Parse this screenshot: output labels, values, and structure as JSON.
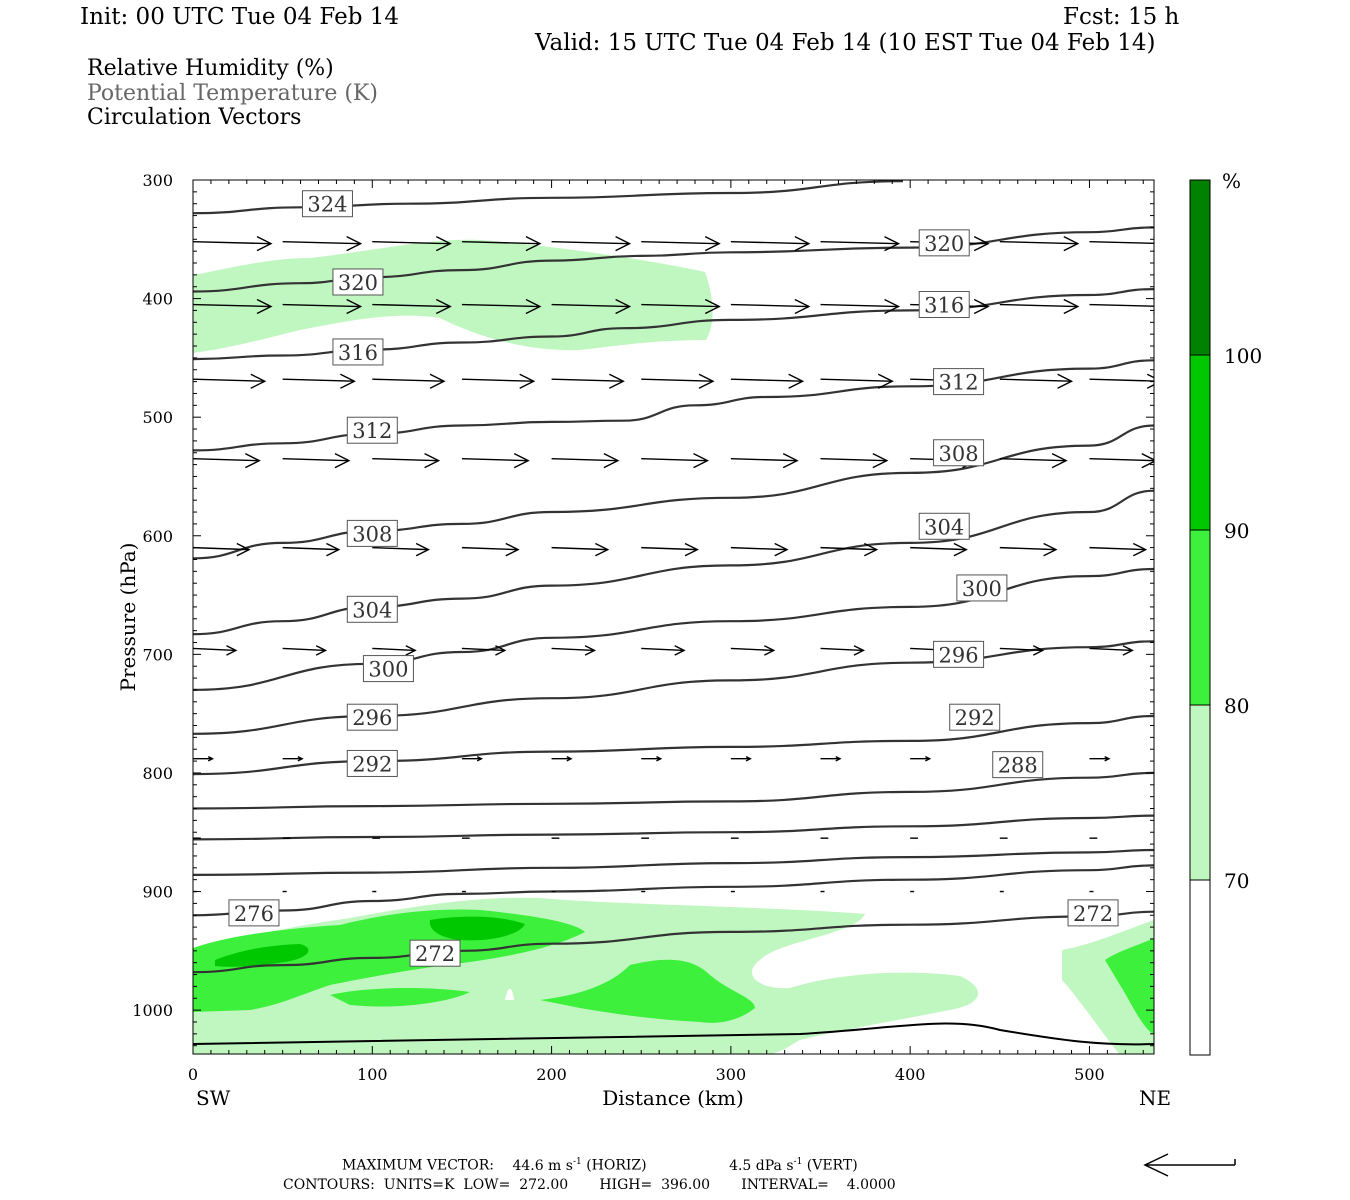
{
  "header": {
    "init": "Init: 00 UTC Tue 04 Feb 14",
    "fcst": "Fcst:   15 h",
    "valid": "Valid: 15 UTC Tue 04 Feb 14 (10 EST Tue 04 Feb 14)"
  },
  "fields": {
    "rh": "Relative Humidity (%)",
    "theta": "Potential Temperature (K)",
    "vectors": "Circulation Vectors"
  },
  "footer": {
    "max_vector_label": "MAXIMUM VECTOR:",
    "max_horiz_value": "44.6 m s",
    "horiz_exp": "-1",
    "horiz_suffix": " (HORIZ)",
    "max_vert_value": "4.5 dPa s",
    "vert_exp": "-1",
    "vert_suffix": " (VERT)",
    "contours": "CONTOURS:  UNITS=K  LOW=  272.00       HIGH=  396.00       INTERVAL=    4.0000"
  },
  "colors": {
    "rh70": "#c0f7c0",
    "rh80": "#3cf03c",
    "rh90": "#00c800",
    "rh100": "#008200",
    "contour": "#333333",
    "frame": "#000000"
  },
  "chart_data": {
    "type": "cross-section",
    "xlabel": "Distance (km)",
    "ylabel": "Pressure (hPa)",
    "xlim": [
      0,
      536
    ],
    "ylim": [
      1037,
      300
    ],
    "x_ticks": [
      0,
      100,
      200,
      300,
      400,
      500
    ],
    "y_ticks": [
      300,
      400,
      500,
      600,
      700,
      800,
      900,
      1000
    ],
    "left_end": "SW",
    "right_end": "NE",
    "colorbar": {
      "unit": "%",
      "levels": [
        70,
        80,
        90,
        100
      ]
    },
    "theta_contours": [
      {
        "value": 324,
        "pts": [
          [
            0,
            328
          ],
          [
            60,
            323
          ],
          [
            120,
            320
          ],
          [
            200,
            315
          ],
          [
            300,
            311
          ],
          [
            396,
            301
          ]
        ]
      },
      {
        "value": 320,
        "pts": [
          [
            0,
            394
          ],
          [
            60,
            387
          ],
          [
            100,
            382
          ],
          [
            150,
            376
          ],
          [
            200,
            368
          ],
          [
            250,
            364
          ],
          [
            300,
            361
          ],
          [
            400,
            357
          ],
          [
            500,
            344
          ],
          [
            536,
            340
          ]
        ]
      },
      {
        "value": 316,
        "pts": [
          [
            0,
            451
          ],
          [
            50,
            448
          ],
          [
            100,
            443
          ],
          [
            150,
            437
          ],
          [
            200,
            432
          ],
          [
            240,
            425
          ],
          [
            300,
            418
          ],
          [
            400,
            410
          ],
          [
            500,
            397
          ],
          [
            536,
            392
          ]
        ]
      },
      {
        "value": 312,
        "pts": [
          [
            0,
            528
          ],
          [
            50,
            522
          ],
          [
            100,
            514
          ],
          [
            150,
            507
          ],
          [
            200,
            504
          ],
          [
            240,
            503
          ],
          [
            280,
            490
          ],
          [
            320,
            483
          ],
          [
            400,
            474
          ],
          [
            500,
            459
          ],
          [
            536,
            452
          ]
        ]
      },
      {
        "value": 308,
        "pts": [
          [
            0,
            619
          ],
          [
            50,
            606
          ],
          [
            100,
            596
          ],
          [
            150,
            590
          ],
          [
            200,
            580
          ],
          [
            300,
            568
          ],
          [
            400,
            547
          ],
          [
            500,
            524
          ],
          [
            536,
            507
          ]
        ]
      },
      {
        "value": 304,
        "pts": [
          [
            0,
            683
          ],
          [
            50,
            672
          ],
          [
            100,
            660
          ],
          [
            150,
            653
          ],
          [
            200,
            642
          ],
          [
            300,
            625
          ],
          [
            400,
            606
          ],
          [
            500,
            580
          ],
          [
            536,
            562
          ]
        ]
      },
      {
        "value": 300,
        "pts": [
          [
            0,
            730
          ],
          [
            100,
            708
          ],
          [
            150,
            698
          ],
          [
            200,
            686
          ],
          [
            300,
            672
          ],
          [
            400,
            660
          ],
          [
            500,
            634
          ],
          [
            536,
            628
          ]
        ]
      },
      {
        "value": 296,
        "pts": [
          [
            0,
            767
          ],
          [
            100,
            752
          ],
          [
            200,
            737
          ],
          [
            300,
            722
          ],
          [
            400,
            707
          ],
          [
            500,
            694
          ],
          [
            536,
            689
          ]
        ]
      },
      {
        "value": 292,
        "pts": [
          [
            0,
            801
          ],
          [
            100,
            790
          ],
          [
            200,
            782
          ],
          [
            300,
            778
          ],
          [
            400,
            773
          ],
          [
            500,
            758
          ],
          [
            536,
            752
          ]
        ]
      },
      {
        "value": 288,
        "pts": [
          [
            0,
            830
          ],
          [
            100,
            828
          ],
          [
            200,
            826
          ],
          [
            300,
            824
          ],
          [
            400,
            816
          ],
          [
            500,
            804
          ],
          [
            536,
            800
          ]
        ]
      },
      {
        "value": 284,
        "pts": [
          [
            0,
            856
          ],
          [
            100,
            854
          ],
          [
            200,
            852
          ],
          [
            300,
            850
          ],
          [
            400,
            845
          ],
          [
            500,
            838
          ],
          [
            536,
            836
          ]
        ]
      },
      {
        "value": 280,
        "pts": [
          [
            0,
            886
          ],
          [
            100,
            884
          ],
          [
            200,
            880
          ],
          [
            300,
            876
          ],
          [
            400,
            871
          ],
          [
            500,
            867
          ],
          [
            536,
            865
          ]
        ]
      },
      {
        "value": 276,
        "pts": [
          [
            0,
            920
          ],
          [
            50,
            916
          ],
          [
            100,
            908
          ],
          [
            150,
            902
          ],
          [
            200,
            900
          ],
          [
            300,
            896
          ],
          [
            400,
            890
          ],
          [
            500,
            882
          ],
          [
            536,
            878
          ]
        ]
      },
      {
        "value": 272,
        "pts": [
          [
            0,
            968
          ],
          [
            50,
            962
          ],
          [
            100,
            956
          ],
          [
            150,
            950
          ],
          [
            200,
            944
          ],
          [
            300,
            934
          ],
          [
            400,
            928
          ],
          [
            500,
            921
          ],
          [
            536,
            917
          ]
        ]
      }
    ],
    "theta_labels": [
      {
        "text": "324",
        "x": 75,
        "p": 320
      },
      {
        "text": "320",
        "x": 92,
        "p": 386
      },
      {
        "text": "316",
        "x": 92,
        "p": 445
      },
      {
        "text": "312",
        "x": 100,
        "p": 511
      },
      {
        "text": "308",
        "x": 100,
        "p": 598
      },
      {
        "text": "304",
        "x": 100,
        "p": 662
      },
      {
        "text": "300",
        "x": 109,
        "p": 712
      },
      {
        "text": "296",
        "x": 100,
        "p": 753
      },
      {
        "text": "292",
        "x": 100,
        "p": 792
      },
      {
        "text": "276",
        "x": 34,
        "p": 918
      },
      {
        "text": "272",
        "x": 135,
        "p": 952
      },
      {
        "text": "320",
        "x": 419,
        "p": 353
      },
      {
        "text": "316",
        "x": 419,
        "p": 405
      },
      {
        "text": "312",
        "x": 427,
        "p": 470
      },
      {
        "text": "308",
        "x": 427,
        "p": 530
      },
      {
        "text": "304",
        "x": 419,
        "p": 592
      },
      {
        "text": "300",
        "x": 440,
        "p": 644
      },
      {
        "text": "296",
        "x": 427,
        "p": 700
      },
      {
        "text": "292",
        "x": 436,
        "p": 753
      },
      {
        "text": "288",
        "x": 460,
        "p": 793
      },
      {
        "text": "272",
        "x": 502,
        "p": 918
      }
    ],
    "vector_rows": [
      {
        "p": 352,
        "u": 1.0
      },
      {
        "p": 405,
        "u": 1.0
      },
      {
        "p": 468,
        "u": 0.92
      },
      {
        "p": 535,
        "u": 0.85
      },
      {
        "p": 610,
        "u": 0.72
      },
      {
        "p": 695,
        "u": 0.55
      },
      {
        "p": 788,
        "u": 0.25
      },
      {
        "p": 855,
        "u": 0.1
      },
      {
        "p": 900,
        "u": 0.05
      }
    ]
  }
}
